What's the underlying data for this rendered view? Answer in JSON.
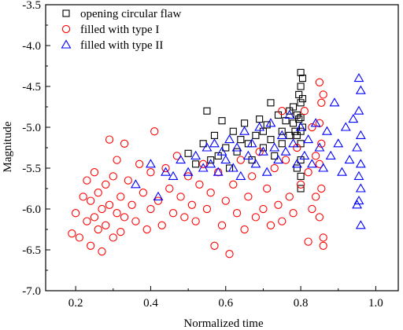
{
  "chart_data": {
    "type": "scatter",
    "title": "",
    "xlabel": "Normalized time",
    "ylabel": "Magnitude",
    "xlim": [
      0.12,
      1.06
    ],
    "ylim": [
      -7.0,
      -3.5
    ],
    "xticks": [
      "0.2",
      "0.4",
      "0.6",
      "0.8",
      "1.0"
    ],
    "yticks": [
      "-3.5",
      "-4.0",
      "-4.5",
      "-5.0",
      "-5.5",
      "-6.0",
      "-6.5",
      "-7.0"
    ],
    "legend_position": "top-left",
    "grid": false,
    "series": [
      {
        "name": "opening circular flaw",
        "marker": "square",
        "color": "#000000",
        "points": [
          [
            0.5,
            -5.32
          ],
          [
            0.52,
            -5.45
          ],
          [
            0.54,
            -5.2
          ],
          [
            0.55,
            -4.8
          ],
          [
            0.56,
            -5.4
          ],
          [
            0.57,
            -5.1
          ],
          [
            0.58,
            -5.35
          ],
          [
            0.59,
            -4.92
          ],
          [
            0.6,
            -5.25
          ],
          [
            0.61,
            -5.5
          ],
          [
            0.62,
            -5.05
          ],
          [
            0.63,
            -5.3
          ],
          [
            0.64,
            -5.15
          ],
          [
            0.65,
            -4.95
          ],
          [
            0.66,
            -5.2
          ],
          [
            0.67,
            -5.4
          ],
          [
            0.68,
            -5.1
          ],
          [
            0.69,
            -4.9
          ],
          [
            0.7,
            -5.05
          ],
          [
            0.7,
            -5.25
          ],
          [
            0.71,
            -4.97
          ],
          [
            0.72,
            -4.7
          ],
          [
            0.72,
            -5.15
          ],
          [
            0.73,
            -5.35
          ],
          [
            0.74,
            -4.85
          ],
          [
            0.75,
            -5.05
          ],
          [
            0.75,
            -5.2
          ],
          [
            0.76,
            -4.92
          ],
          [
            0.77,
            -4.8
          ],
          [
            0.77,
            -5.1
          ],
          [
            0.78,
            -4.75
          ],
          [
            0.78,
            -4.95
          ],
          [
            0.785,
            -5.05
          ],
          [
            0.79,
            -4.85
          ],
          [
            0.79,
            -5.1
          ],
          [
            0.795,
            -4.6
          ],
          [
            0.795,
            -4.9
          ],
          [
            0.8,
            -4.33
          ],
          [
            0.8,
            -4.5
          ],
          [
            0.8,
            -4.7
          ],
          [
            0.8,
            -4.88
          ],
          [
            0.8,
            -5.05
          ],
          [
            0.8,
            -5.2
          ],
          [
            0.8,
            -5.4
          ],
          [
            0.805,
            -4.4
          ],
          [
            0.805,
            -4.65
          ],
          [
            0.805,
            -5.0
          ],
          [
            0.8,
            -5.75
          ],
          [
            0.8,
            -5.6
          ],
          [
            0.79,
            -5.5
          ]
        ]
      },
      {
        "name": "filled with type I",
        "marker": "circle",
        "color": "#ff0000",
        "points": [
          [
            0.19,
            -6.3
          ],
          [
            0.2,
            -6.05
          ],
          [
            0.21,
            -6.35
          ],
          [
            0.22,
            -5.85
          ],
          [
            0.23,
            -6.15
          ],
          [
            0.23,
            -5.65
          ],
          [
            0.24,
            -6.45
          ],
          [
            0.24,
            -5.9
          ],
          [
            0.25,
            -6.1
          ],
          [
            0.25,
            -5.55
          ],
          [
            0.26,
            -6.25
          ],
          [
            0.26,
            -5.8
          ],
          [
            0.27,
            -6.52
          ],
          [
            0.27,
            -6.0
          ],
          [
            0.28,
            -5.7
          ],
          [
            0.28,
            -6.2
          ],
          [
            0.29,
            -5.15
          ],
          [
            0.29,
            -5.95
          ],
          [
            0.3,
            -6.35
          ],
          [
            0.3,
            -5.6
          ],
          [
            0.31,
            -6.05
          ],
          [
            0.31,
            -5.4
          ],
          [
            0.32,
            -5.85
          ],
          [
            0.32,
            -6.28
          ],
          [
            0.33,
            -5.2
          ],
          [
            0.33,
            -6.1
          ],
          [
            0.34,
            -5.65
          ],
          [
            0.35,
            -5.95
          ],
          [
            0.36,
            -6.15
          ],
          [
            0.37,
            -5.45
          ],
          [
            0.38,
            -5.8
          ],
          [
            0.39,
            -6.25
          ],
          [
            0.4,
            -5.55
          ],
          [
            0.4,
            -6.0
          ],
          [
            0.41,
            -5.05
          ],
          [
            0.42,
            -5.9
          ],
          [
            0.43,
            -6.2
          ],
          [
            0.44,
            -5.5
          ],
          [
            0.45,
            -5.75
          ],
          [
            0.46,
            -6.05
          ],
          [
            0.47,
            -5.35
          ],
          [
            0.48,
            -5.85
          ],
          [
            0.49,
            -6.1
          ],
          [
            0.5,
            -5.6
          ],
          [
            0.51,
            -5.95
          ],
          [
            0.52,
            -6.15
          ],
          [
            0.53,
            -5.7
          ],
          [
            0.54,
            -5.45
          ],
          [
            0.55,
            -6.0
          ],
          [
            0.56,
            -5.8
          ],
          [
            0.57,
            -6.45
          ],
          [
            0.58,
            -5.55
          ],
          [
            0.59,
            -6.2
          ],
          [
            0.6,
            -5.9
          ],
          [
            0.61,
            -6.55
          ],
          [
            0.62,
            -5.7
          ],
          [
            0.63,
            -6.05
          ],
          [
            0.64,
            -5.4
          ],
          [
            0.65,
            -6.25
          ],
          [
            0.66,
            -5.85
          ],
          [
            0.67,
            -5.6
          ],
          [
            0.68,
            -6.1
          ],
          [
            0.69,
            -5.3
          ],
          [
            0.7,
            -6.0
          ],
          [
            0.71,
            -5.75
          ],
          [
            0.72,
            -6.2
          ],
          [
            0.73,
            -5.5
          ],
          [
            0.74,
            -5.95
          ],
          [
            0.75,
            -4.8
          ],
          [
            0.75,
            -6.15
          ],
          [
            0.76,
            -5.4
          ],
          [
            0.77,
            -5.85
          ],
          [
            0.78,
            -6.05
          ],
          [
            0.79,
            -5.25
          ],
          [
            0.8,
            -5.7
          ],
          [
            0.81,
            -4.8
          ],
          [
            0.82,
            -6.4
          ],
          [
            0.82,
            -5.55
          ],
          [
            0.83,
            -5.0
          ],
          [
            0.83,
            -6.0
          ],
          [
            0.84,
            -5.35
          ],
          [
            0.84,
            -5.85
          ],
          [
            0.85,
            -4.45
          ],
          [
            0.85,
            -4.95
          ],
          [
            0.85,
            -5.45
          ],
          [
            0.85,
            -6.1
          ],
          [
            0.855,
            -4.7
          ],
          [
            0.855,
            -5.2
          ],
          [
            0.855,
            -5.75
          ],
          [
            0.86,
            -6.35
          ],
          [
            0.86,
            -6.45
          ],
          [
            0.86,
            -4.6
          ]
        ]
      },
      {
        "name": "filled with type II",
        "marker": "triangle",
        "color": "#0000ff",
        "points": [
          [
            0.36,
            -5.7
          ],
          [
            0.4,
            -5.45
          ],
          [
            0.42,
            -5.85
          ],
          [
            0.44,
            -5.55
          ],
          [
            0.46,
            -5.6
          ],
          [
            0.48,
            -5.4
          ],
          [
            0.5,
            -5.55
          ],
          [
            0.52,
            -5.35
          ],
          [
            0.54,
            -5.5
          ],
          [
            0.55,
            -5.25
          ],
          [
            0.56,
            -5.45
          ],
          [
            0.57,
            -5.2
          ],
          [
            0.58,
            -5.55
          ],
          [
            0.59,
            -5.3
          ],
          [
            0.6,
            -5.4
          ],
          [
            0.61,
            -5.15
          ],
          [
            0.62,
            -5.5
          ],
          [
            0.63,
            -5.25
          ],
          [
            0.64,
            -5.6
          ],
          [
            0.65,
            -5.05
          ],
          [
            0.66,
            -5.35
          ],
          [
            0.67,
            -5.2
          ],
          [
            0.68,
            -5.45
          ],
          [
            0.69,
            -5.0
          ],
          [
            0.7,
            -5.3
          ],
          [
            0.71,
            -5.55
          ],
          [
            0.72,
            -4.95
          ],
          [
            0.73,
            -5.25
          ],
          [
            0.74,
            -5.4
          ],
          [
            0.75,
            -5.1
          ],
          [
            0.76,
            -5.3
          ],
          [
            0.77,
            -4.85
          ],
          [
            0.78,
            -5.2
          ],
          [
            0.79,
            -5.45
          ],
          [
            0.8,
            -5.0
          ],
          [
            0.81,
            -5.35
          ],
          [
            0.82,
            -5.15
          ],
          [
            0.83,
            -5.45
          ],
          [
            0.84,
            -4.95
          ],
          [
            0.85,
            -5.25
          ],
          [
            0.86,
            -5.5
          ],
          [
            0.87,
            -5.05
          ],
          [
            0.88,
            -5.35
          ],
          [
            0.89,
            -4.7
          ],
          [
            0.9,
            -5.2
          ],
          [
            0.91,
            -5.55
          ],
          [
            0.92,
            -5.0
          ],
          [
            0.93,
            -5.4
          ],
          [
            0.94,
            -4.9
          ],
          [
            0.95,
            -5.25
          ],
          [
            0.955,
            -4.4
          ],
          [
            0.955,
            -4.8
          ],
          [
            0.955,
            -5.6
          ],
          [
            0.955,
            -5.9
          ],
          [
            0.96,
            -4.55
          ],
          [
            0.96,
            -5.1
          ],
          [
            0.96,
            -5.45
          ],
          [
            0.96,
            -5.75
          ],
          [
            0.96,
            -6.2
          ],
          [
            0.95,
            -5.95
          ]
        ]
      }
    ]
  }
}
